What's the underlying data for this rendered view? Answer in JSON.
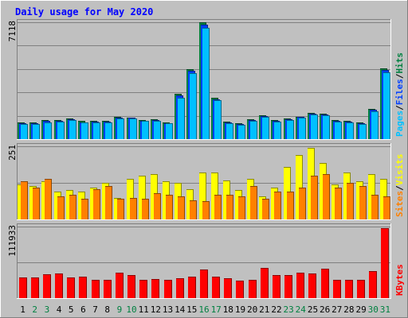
{
  "title": "Daily usage for May 2020",
  "colors": {
    "background": "#c0c0c0",
    "border_light": "#ffffff",
    "border_dark": "#808080",
    "title": "#0000ff",
    "grid": "#808080",
    "hits": "#008040",
    "files": "#0040ff",
    "pages": "#00c0ff",
    "visits": "#ffff00",
    "sites": "#ff8000",
    "kbytes": "#ff0000",
    "day_weekday": "#000000",
    "day_weekend": "#008040"
  },
  "right_labels": {
    "top": [
      {
        "text": "Pages",
        "color": "#00c0ff"
      },
      {
        "text": "/",
        "color": "#000000"
      },
      {
        "text": "Files",
        "color": "#0040ff"
      },
      {
        "text": "/",
        "color": "#000000"
      },
      {
        "text": "Hits",
        "color": "#008040"
      }
    ],
    "middle": [
      {
        "text": "Sites",
        "color": "#ff8000"
      },
      {
        "text": "/",
        "color": "#000000"
      },
      {
        "text": "Visits",
        "color": "#ffff00"
      }
    ],
    "bottom": [
      {
        "text": "KBytes",
        "color": "#ff0000"
      }
    ]
  },
  "chart_data": [
    {
      "type": "bar",
      "name": "hits-files-pages",
      "ymax_label": "7118",
      "ylim": [
        0,
        7118
      ],
      "categories": [
        "1",
        "2",
        "3",
        "4",
        "5",
        "6",
        "7",
        "8",
        "9",
        "10",
        "11",
        "12",
        "13",
        "14",
        "15",
        "16",
        "17",
        "18",
        "19",
        "20",
        "21",
        "22",
        "23",
        "24",
        "25",
        "26",
        "27",
        "28",
        "29",
        "30",
        "31"
      ],
      "series": [
        {
          "name": "Hits",
          "values": [
            1010,
            1020,
            1140,
            1170,
            1240,
            1090,
            1130,
            1120,
            1340,
            1330,
            1180,
            1200,
            1030,
            2740,
            4260,
            7120,
            2520,
            1050,
            970,
            1220,
            1450,
            1160,
            1250,
            1380,
            1610,
            1560,
            1160,
            1110,
            1020,
            1830,
            4330
          ]
        },
        {
          "name": "Files",
          "values": [
            960,
            970,
            1090,
            1120,
            1200,
            1040,
            1080,
            1070,
            1290,
            1290,
            1130,
            1160,
            990,
            2640,
            4150,
            6950,
            2440,
            1010,
            930,
            1170,
            1400,
            1110,
            1200,
            1340,
            1550,
            1500,
            1120,
            1070,
            980,
            1770,
            4200
          ]
        },
        {
          "name": "Pages",
          "values": [
            920,
            930,
            1040,
            1070,
            1150,
            1000,
            1040,
            1030,
            1240,
            1240,
            1090,
            1110,
            950,
            2540,
            4030,
            6800,
            2370,
            970,
            890,
            1130,
            1350,
            1070,
            1160,
            1300,
            1490,
            1440,
            1080,
            1030,
            940,
            1710,
            4090
          ]
        }
      ]
    },
    {
      "type": "bar",
      "name": "visits-sites",
      "ymax_label": "251",
      "ylim": [
        0,
        251
      ],
      "categories": [
        "1",
        "2",
        "3",
        "4",
        "5",
        "6",
        "7",
        "8",
        "9",
        "10",
        "11",
        "12",
        "13",
        "14",
        "15",
        "16",
        "17",
        "18",
        "19",
        "20",
        "21",
        "22",
        "23",
        "24",
        "25",
        "26",
        "27",
        "28",
        "29",
        "30",
        "31"
      ],
      "series": [
        {
          "name": "Visits",
          "values": [
            120,
            115,
            130,
            95,
            100,
            95,
            110,
            125,
            75,
            140,
            150,
            155,
            130,
            125,
            105,
            160,
            160,
            135,
            100,
            140,
            80,
            110,
            180,
            220,
            245,
            195,
            120,
            160,
            130,
            155,
            140
          ]
        },
        {
          "name": "Sites",
          "values": [
            130,
            110,
            140,
            80,
            85,
            70,
            105,
            115,
            72,
            75,
            72,
            90,
            85,
            80,
            65,
            62,
            85,
            85,
            78,
            115,
            72,
            95,
            95,
            110,
            150,
            155,
            110,
            125,
            115,
            85,
            80
          ]
        }
      ]
    },
    {
      "type": "bar",
      "name": "kbytes",
      "ymax_label": "111933",
      "ylim": [
        0,
        111933
      ],
      "categories": [
        "1",
        "2",
        "3",
        "4",
        "5",
        "6",
        "7",
        "8",
        "9",
        "10",
        "11",
        "12",
        "13",
        "14",
        "15",
        "16",
        "17",
        "18",
        "19",
        "20",
        "21",
        "22",
        "23",
        "24",
        "25",
        "26",
        "27",
        "28",
        "29",
        "30",
        "31"
      ],
      "series": [
        {
          "name": "KBytes",
          "values": [
            32000,
            32500,
            37000,
            39000,
            32500,
            33000,
            28500,
            28500,
            40000,
            35500,
            28000,
            30000,
            28500,
            30500,
            33500,
            45000,
            33500,
            31500,
            27500,
            29000,
            47000,
            36000,
            36000,
            40000,
            38000,
            45500,
            28000,
            28500,
            28500,
            42000,
            109000
          ]
        }
      ]
    }
  ],
  "day_labels": [
    "1",
    "2",
    "3",
    "4",
    "5",
    "6",
    "7",
    "8",
    "9",
    "10",
    "11",
    "12",
    "13",
    "14",
    "15",
    "16",
    "17",
    "18",
    "19",
    "20",
    "21",
    "22",
    "23",
    "24",
    "25",
    "26",
    "27",
    "28",
    "29",
    "30",
    "31"
  ],
  "weekend_days": [
    "2",
    "3",
    "9",
    "10",
    "16",
    "17",
    "23",
    "24",
    "30",
    "31"
  ]
}
